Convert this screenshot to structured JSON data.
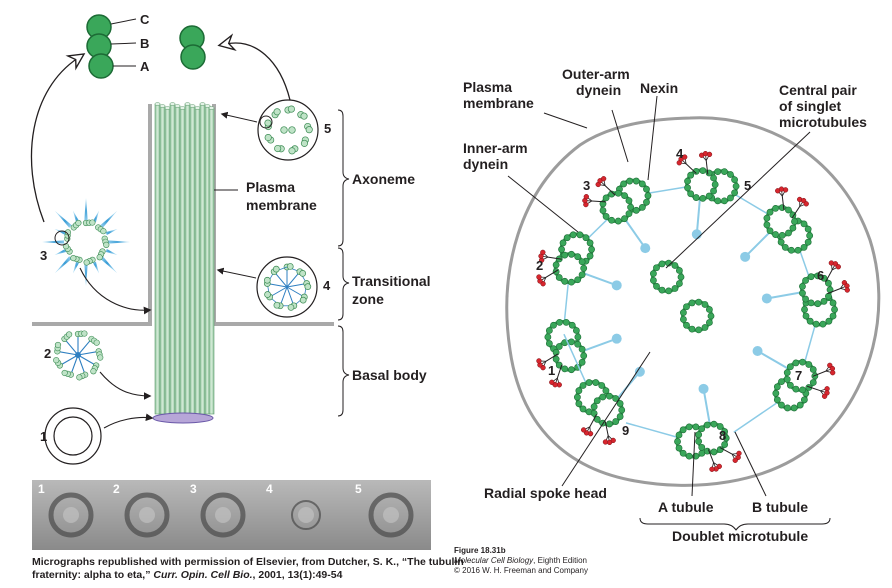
{
  "left_panel": {
    "triplet_labels": [
      "C",
      "B",
      "A"
    ],
    "stage_numbers": [
      "1",
      "2",
      "3",
      "4",
      "5"
    ],
    "plasma_membrane": [
      "Plasma",
      "membrane"
    ],
    "regions": {
      "axoneme": "Axoneme",
      "transitional_zone": [
        "Transitional",
        "zone"
      ],
      "basal_body": "Basal body"
    },
    "micrograph_labels": [
      "1",
      "2",
      "3",
      "4",
      "5"
    ],
    "credit": {
      "line1": "Micrographs republished with permission of Elsevier, from Dutcher, S. K., “The tubulin",
      "line2_pre": "fraternity: alpha to eta,” ",
      "line2_italic": "Curr. Opin. Cell Bio.",
      "line2_post": ", 2001, 13(1):49-54"
    }
  },
  "right_panel": {
    "plasma_membrane": [
      "Plasma",
      "membrane"
    ],
    "outer_arm_dynein": [
      "Outer-arm",
      "dynein"
    ],
    "nexin": "Nexin",
    "central_pair": [
      "Central pair",
      "of singlet",
      "microtubules"
    ],
    "inner_arm_dynein": [
      "Inner-arm",
      "dynein"
    ],
    "doublet_numbers": [
      "1",
      "2",
      "3",
      "4",
      "5",
      "6",
      "7",
      "8",
      "9"
    ],
    "radial_spoke_head": "Radial spoke head",
    "a_tubule": "A tubule",
    "b_tubule": "B tubule",
    "doublet_microtubule": "Doublet microtubule"
  },
  "figure_caption": {
    "number": "Figure 18.31b",
    "book_italic": "Molecular Cell Biology",
    "book_edition": ", Eighth Edition",
    "copyright": "© 2016 W. H. Freeman and Company"
  },
  "colors": {
    "tubule_green": "#3aa75a",
    "tubule_dark": "#1c6b35",
    "spoke_blue": "#8ccbe6",
    "membrane_gray": "#8f8f8f",
    "dynein_red": "#d7262e",
    "axoneme_green": "#b8dcc0"
  }
}
